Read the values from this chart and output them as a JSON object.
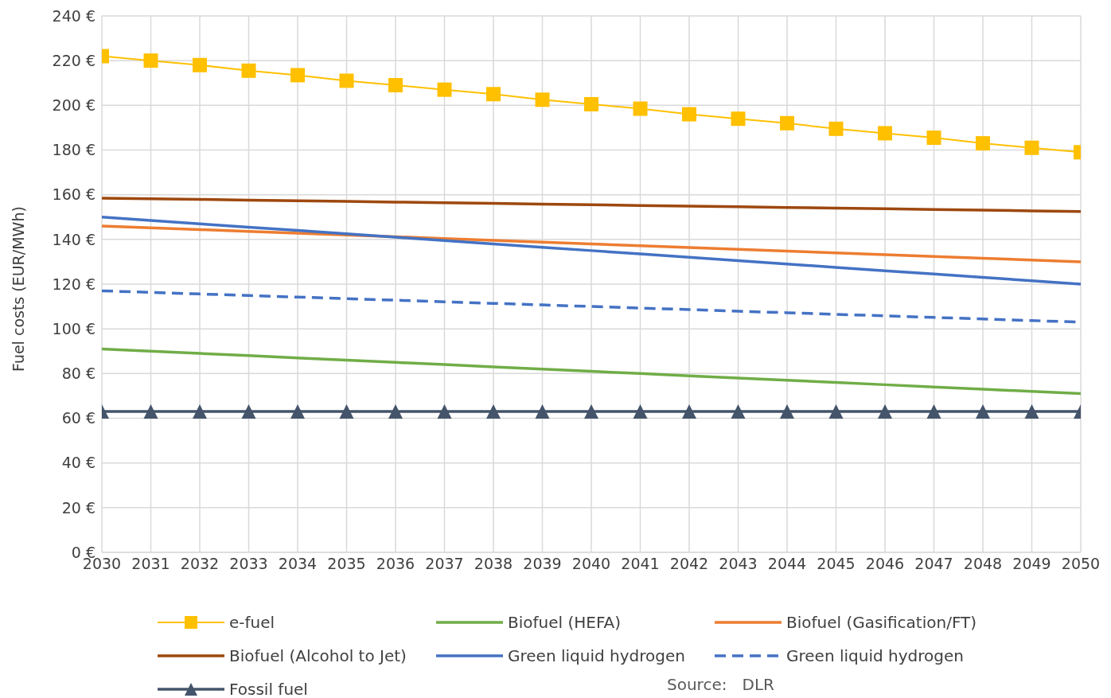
{
  "chart_data": {
    "type": "line",
    "ylabel": "Fuel costs (EUR/MWh)",
    "x": [
      2030,
      2031,
      2032,
      2033,
      2034,
      2035,
      2036,
      2037,
      2038,
      2039,
      2040,
      2041,
      2042,
      2043,
      2044,
      2045,
      2046,
      2047,
      2048,
      2049,
      2050
    ],
    "xlim": [
      2030,
      2050
    ],
    "xticks": [
      2030,
      2031,
      2032,
      2033,
      2034,
      2035,
      2036,
      2037,
      2038,
      2039,
      2040,
      2041,
      2042,
      2043,
      2044,
      2045,
      2046,
      2047,
      2048,
      2049,
      2050
    ],
    "ylim": [
      0,
      240
    ],
    "yticks": [
      {
        "value": 0,
        "label": "0 €"
      },
      {
        "value": 20,
        "label": "20 €"
      },
      {
        "value": 40,
        "label": "40 €"
      },
      {
        "value": 60,
        "label": "60 €"
      },
      {
        "value": 80,
        "label": "80 €"
      },
      {
        "value": 100,
        "label": "100 €"
      },
      {
        "value": 120,
        "label": "120 €"
      },
      {
        "value": 140,
        "label": "140 €"
      },
      {
        "value": 160,
        "label": "160 €"
      },
      {
        "value": 180,
        "label": "180 €"
      },
      {
        "value": 200,
        "label": "200 €"
      },
      {
        "value": 220,
        "label": "220 €"
      },
      {
        "value": 240,
        "label": "240 €"
      }
    ],
    "grid": true,
    "legend": "bottom",
    "annotations": [
      "Source:   DLR"
    ],
    "series": [
      {
        "name": "e-fuel",
        "color": "#ffc000",
        "marker": "square",
        "line_style": "solid",
        "values": [
          222,
          220,
          218,
          215.5,
          213.5,
          211,
          209,
          207,
          205,
          202.5,
          200.5,
          198.5,
          196,
          194,
          192,
          189.5,
          187.5,
          185.5,
          183,
          181,
          179
        ]
      },
      {
        "name": "Biofuel (HEFA)",
        "color": "#70ad47",
        "marker": "none",
        "line_style": "solid",
        "values": [
          91,
          90,
          89,
          88,
          87,
          86,
          85,
          84,
          83,
          82,
          81,
          80,
          79,
          78,
          77,
          76,
          75,
          74,
          73,
          72,
          71
        ]
      },
      {
        "name": "Biofuel (Gasification/FT)",
        "color": "#ed7d31",
        "marker": "none",
        "line_style": "solid",
        "values": [
          146,
          145.2,
          144.4,
          143.6,
          142.8,
          142,
          141.2,
          140.4,
          139.6,
          138.8,
          138,
          137.2,
          136.4,
          135.6,
          134.8,
          134,
          133.2,
          132.4,
          131.6,
          130.8,
          130
        ]
      },
      {
        "name": "Biofuel (Alcohol to Jet)",
        "color": "#9e480e",
        "marker": "none",
        "line_style": "solid",
        "values": [
          158.5,
          158.2,
          157.9,
          157.6,
          157.3,
          157,
          156.7,
          156.4,
          156.1,
          155.8,
          155.5,
          155.2,
          154.9,
          154.6,
          154.3,
          154,
          153.7,
          153.4,
          153.1,
          152.8,
          152.5
        ]
      },
      {
        "name": "Green liquid hydrogen",
        "color": "#4472c4",
        "marker": "none",
        "line_style": "solid",
        "values": [
          150,
          148.5,
          147,
          145.5,
          144,
          142.5,
          141,
          139.5,
          138,
          136.5,
          135,
          133.5,
          132,
          130.5,
          129,
          127.5,
          126,
          124.5,
          123,
          121.5,
          120
        ]
      },
      {
        "name": "Green liquid hydrogen",
        "color": "#4472c4",
        "marker": "none",
        "line_style": "dashed",
        "values": [
          117,
          116.3,
          115.6,
          114.9,
          114.2,
          113.5,
          112.8,
          112.1,
          111.4,
          110.7,
          110,
          109.3,
          108.6,
          107.9,
          107.2,
          106.5,
          105.8,
          105.1,
          104.4,
          103.7,
          103
        ]
      },
      {
        "name": "Fossil fuel",
        "color": "#44546a",
        "marker": "triangle",
        "line_style": "solid",
        "values": [
          63,
          63,
          63,
          63,
          63,
          63,
          63,
          63,
          63,
          63,
          63,
          63,
          63,
          63,
          63,
          63,
          63,
          63,
          63,
          63,
          63
        ]
      }
    ]
  }
}
